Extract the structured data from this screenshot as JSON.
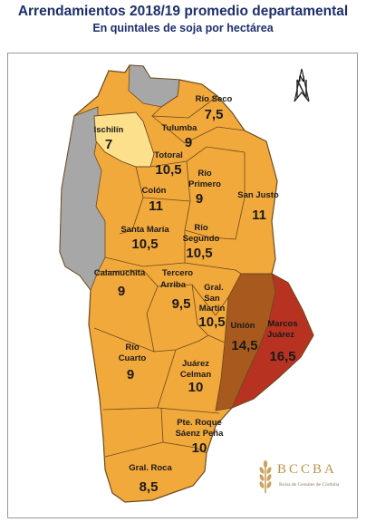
{
  "title": "Arrendamientos 2018/19 promedio departamental",
  "subtitle": "En quintales de soja por hectárea",
  "north_label": "N",
  "brand": {
    "name": "BCCBA",
    "tagline": "Bolsa de Cereales de Córdoba"
  },
  "colors": {
    "base": "#f2a93b",
    "low": "#fde08c",
    "no_data": "#a7a7a7",
    "high": "#a85a1e",
    "highest": "#b83222",
    "border": "#6b4a1e"
  },
  "departments": [
    {
      "name": "Río Seco",
      "value": "7,5"
    },
    {
      "name": "Tulumba",
      "value": "9"
    },
    {
      "name": "Ischilín",
      "value": "7"
    },
    {
      "name": "Totoral",
      "value": "10,5"
    },
    {
      "name": "Río Primero",
      "value": "9"
    },
    {
      "name": "Colón",
      "value": "11"
    },
    {
      "name": "San Justo",
      "value": "11"
    },
    {
      "name": "Santa María",
      "value": "10,5"
    },
    {
      "name": "Río Segundo",
      "value": "10,5"
    },
    {
      "name": "Calamuchita",
      "value": "9"
    },
    {
      "name": "Tercero Arriba",
      "value": "9,5"
    },
    {
      "name": "Gral. San Martín",
      "value": "10,5"
    },
    {
      "name": "Unión",
      "value": "14,5"
    },
    {
      "name": "Marcos Juárez",
      "value": "16,5"
    },
    {
      "name": "Río Cuarto",
      "value": "9"
    },
    {
      "name": "Juárez Celman",
      "value": "10"
    },
    {
      "name": "Pte. Roque Sáenz Peña",
      "value": "10"
    },
    {
      "name": "Gral. Roca",
      "value": "8,5"
    }
  ]
}
